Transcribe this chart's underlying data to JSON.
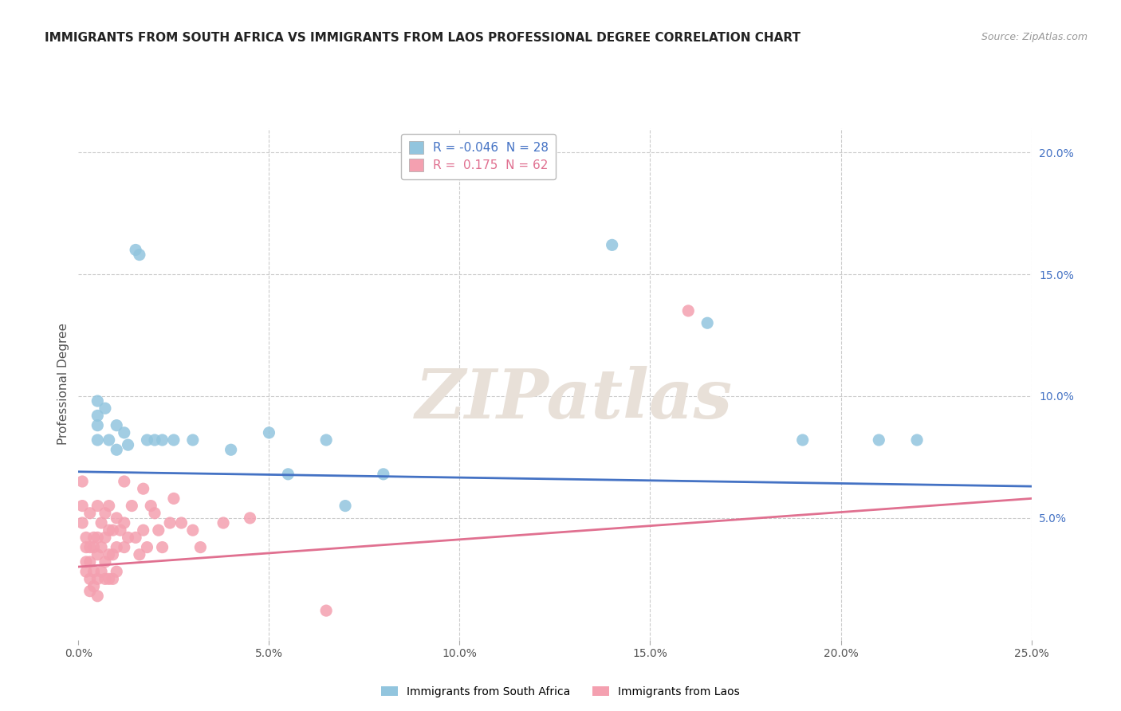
{
  "title": "IMMIGRANTS FROM SOUTH AFRICA VS IMMIGRANTS FROM LAOS PROFESSIONAL DEGREE CORRELATION CHART",
  "source": "Source: ZipAtlas.com",
  "ylabel": "Professional Degree",
  "xlim": [
    0.0,
    0.25
  ],
  "ylim": [
    0.0,
    0.21
  ],
  "x_ticks": [
    0.0,
    0.05,
    0.1,
    0.15,
    0.2,
    0.25
  ],
  "x_tick_labels": [
    "0.0%",
    "5.0%",
    "10.0%",
    "15.0%",
    "20.0%",
    "25.0%"
  ],
  "y_ticks_right": [
    0.05,
    0.1,
    0.15,
    0.2
  ],
  "y_tick_labels_right": [
    "5.0%",
    "10.0%",
    "15.0%",
    "20.0%"
  ],
  "R_south_africa": -0.046,
  "N_south_africa": 28,
  "R_laos": 0.175,
  "N_laos": 62,
  "south_africa_color": "#92c5de",
  "laos_color": "#f4a0b0",
  "line_south_africa_color": "#4472c4",
  "line_laos_color": "#e07090",
  "sa_line_start_y": 0.069,
  "sa_line_end_y": 0.063,
  "laos_line_start_y": 0.03,
  "laos_line_end_y": 0.058,
  "south_africa_points": [
    [
      0.005,
      0.098
    ],
    [
      0.005,
      0.092
    ],
    [
      0.005,
      0.088
    ],
    [
      0.005,
      0.082
    ],
    [
      0.007,
      0.095
    ],
    [
      0.008,
      0.082
    ],
    [
      0.01,
      0.078
    ],
    [
      0.01,
      0.088
    ],
    [
      0.012,
      0.085
    ],
    [
      0.013,
      0.08
    ],
    [
      0.015,
      0.16
    ],
    [
      0.016,
      0.158
    ],
    [
      0.018,
      0.082
    ],
    [
      0.02,
      0.082
    ],
    [
      0.022,
      0.082
    ],
    [
      0.025,
      0.082
    ],
    [
      0.03,
      0.082
    ],
    [
      0.04,
      0.078
    ],
    [
      0.05,
      0.085
    ],
    [
      0.055,
      0.068
    ],
    [
      0.065,
      0.082
    ],
    [
      0.07,
      0.055
    ],
    [
      0.08,
      0.068
    ],
    [
      0.14,
      0.162
    ],
    [
      0.165,
      0.13
    ],
    [
      0.19,
      0.082
    ],
    [
      0.21,
      0.082
    ],
    [
      0.22,
      0.082
    ]
  ],
  "laos_points": [
    [
      0.001,
      0.065
    ],
    [
      0.001,
      0.055
    ],
    [
      0.001,
      0.048
    ],
    [
      0.002,
      0.042
    ],
    [
      0.002,
      0.038
    ],
    [
      0.002,
      0.032
    ],
    [
      0.002,
      0.028
    ],
    [
      0.003,
      0.052
    ],
    [
      0.003,
      0.038
    ],
    [
      0.003,
      0.032
    ],
    [
      0.003,
      0.025
    ],
    [
      0.003,
      0.02
    ],
    [
      0.004,
      0.042
    ],
    [
      0.004,
      0.038
    ],
    [
      0.004,
      0.028
    ],
    [
      0.004,
      0.022
    ],
    [
      0.005,
      0.055
    ],
    [
      0.005,
      0.042
    ],
    [
      0.005,
      0.035
    ],
    [
      0.005,
      0.025
    ],
    [
      0.005,
      0.018
    ],
    [
      0.006,
      0.048
    ],
    [
      0.006,
      0.038
    ],
    [
      0.006,
      0.028
    ],
    [
      0.007,
      0.052
    ],
    [
      0.007,
      0.042
    ],
    [
      0.007,
      0.032
    ],
    [
      0.007,
      0.025
    ],
    [
      0.008,
      0.055
    ],
    [
      0.008,
      0.045
    ],
    [
      0.008,
      0.035
    ],
    [
      0.008,
      0.025
    ],
    [
      0.009,
      0.045
    ],
    [
      0.009,
      0.035
    ],
    [
      0.009,
      0.025
    ],
    [
      0.01,
      0.05
    ],
    [
      0.01,
      0.038
    ],
    [
      0.01,
      0.028
    ],
    [
      0.011,
      0.045
    ],
    [
      0.012,
      0.065
    ],
    [
      0.012,
      0.048
    ],
    [
      0.012,
      0.038
    ],
    [
      0.013,
      0.042
    ],
    [
      0.014,
      0.055
    ],
    [
      0.015,
      0.042
    ],
    [
      0.016,
      0.035
    ],
    [
      0.017,
      0.062
    ],
    [
      0.017,
      0.045
    ],
    [
      0.018,
      0.038
    ],
    [
      0.019,
      0.055
    ],
    [
      0.02,
      0.052
    ],
    [
      0.021,
      0.045
    ],
    [
      0.022,
      0.038
    ],
    [
      0.024,
      0.048
    ],
    [
      0.025,
      0.058
    ],
    [
      0.027,
      0.048
    ],
    [
      0.03,
      0.045
    ],
    [
      0.032,
      0.038
    ],
    [
      0.038,
      0.048
    ],
    [
      0.045,
      0.05
    ],
    [
      0.065,
      0.012
    ],
    [
      0.16,
      0.135
    ]
  ],
  "background_color": "#ffffff",
  "grid_color": "#cccccc",
  "watermark_text": "ZIPatlas",
  "watermark_color": "#e8e0d8"
}
